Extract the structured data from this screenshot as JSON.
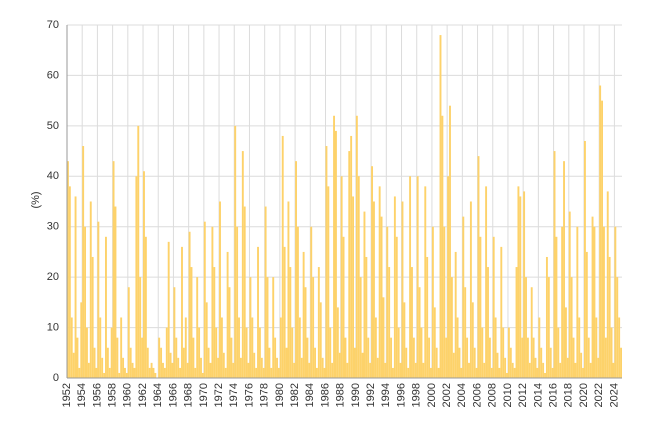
{
  "chart_data": {
    "type": "bar",
    "y_label": "(%)",
    "color": "#fdd26a",
    "grid": true,
    "xlim": [
      1952,
      2025
    ],
    "xticks": [
      1952,
      1954,
      1956,
      1958,
      1960,
      1962,
      1964,
      1966,
      1968,
      1970,
      1972,
      1974,
      1976,
      1978,
      1980,
      1982,
      1984,
      1986,
      1988,
      1990,
      1992,
      1994,
      1996,
      1998,
      2000,
      2002,
      2004,
      2006,
      2008,
      2010,
      2012,
      2014,
      2016,
      2018,
      2020,
      2022,
      2024
    ],
    "ylim": [
      0,
      70
    ],
    "yticks": [
      0,
      10,
      20,
      30,
      40,
      50,
      60,
      70
    ],
    "x": [
      1952,
      1952.25,
      1952.5,
      1952.75,
      1953,
      1953.25,
      1953.5,
      1953.75,
      1954,
      1954.25,
      1954.5,
      1954.75,
      1955,
      1955.25,
      1955.5,
      1955.75,
      1956,
      1956.25,
      1956.5,
      1956.75,
      1957,
      1957.25,
      1957.5,
      1957.75,
      1958,
      1958.25,
      1958.5,
      1958.75,
      1959,
      1959.25,
      1959.5,
      1959.75,
      1960,
      1960.25,
      1960.5,
      1960.75,
      1961,
      1961.25,
      1961.5,
      1961.75,
      1962,
      1962.25,
      1962.5,
      1962.75,
      1963,
      1963.25,
      1963.5,
      1963.75,
      1964,
      1964.25,
      1964.5,
      1964.75,
      1965,
      1965.25,
      1965.5,
      1965.75,
      1966,
      1966.25,
      1966.5,
      1966.75,
      1967,
      1967.25,
      1967.5,
      1967.75,
      1968,
      1968.25,
      1968.5,
      1968.75,
      1969,
      1969.25,
      1969.5,
      1969.75,
      1970,
      1970.25,
      1970.5,
      1970.75,
      1971,
      1971.25,
      1971.5,
      1971.75,
      1972,
      1972.25,
      1972.5,
      1972.75,
      1973,
      1973.25,
      1973.5,
      1973.75,
      1974,
      1974.25,
      1974.5,
      1974.75,
      1975,
      1975.25,
      1975.5,
      1975.75,
      1976,
      1976.25,
      1976.5,
      1976.75,
      1977,
      1977.25,
      1977.5,
      1977.75,
      1978,
      1978.25,
      1978.5,
      1978.75,
      1979,
      1979.25,
      1979.5,
      1979.75,
      1980,
      1980.25,
      1980.5,
      1980.75,
      1981,
      1981.25,
      1981.5,
      1981.75,
      1982,
      1982.25,
      1982.5,
      1982.75,
      1983,
      1983.25,
      1983.5,
      1983.75,
      1984,
      1984.25,
      1984.5,
      1984.75,
      1985,
      1985.25,
      1985.5,
      1985.75,
      1986,
      1986.25,
      1986.5,
      1986.75,
      1987,
      1987.25,
      1987.5,
      1987.75,
      1988,
      1988.25,
      1988.5,
      1988.75,
      1989,
      1989.25,
      1989.5,
      1989.75,
      1990,
      1990.25,
      1990.5,
      1990.75,
      1991,
      1991.25,
      1991.5,
      1991.75,
      1992,
      1992.25,
      1992.5,
      1992.75,
      1993,
      1993.25,
      1993.5,
      1993.75,
      1994,
      1994.25,
      1994.5,
      1994.75,
      1995,
      1995.25,
      1995.5,
      1995.75,
      1996,
      1996.25,
      1996.5,
      1996.75,
      1997,
      1997.25,
      1997.5,
      1997.75,
      1998,
      1998.25,
      1998.5,
      1998.75,
      1999,
      1999.25,
      1999.5,
      1999.75,
      2000,
      2000.25,
      2000.5,
      2000.75,
      2001,
      2001.25,
      2001.5,
      2001.75,
      2002,
      2002.25,
      2002.5,
      2002.75,
      2003,
      2003.25,
      2003.5,
      2003.75,
      2004,
      2004.25,
      2004.5,
      2004.75,
      2005,
      2005.25,
      2005.5,
      2005.75,
      2006,
      2006.25,
      2006.5,
      2006.75,
      2007,
      2007.25,
      2007.5,
      2007.75,
      2008,
      2008.25,
      2008.5,
      2008.75,
      2009,
      2009.25,
      2009.5,
      2009.75,
      2010,
      2010.25,
      2010.5,
      2010.75,
      2011,
      2011.25,
      2011.5,
      2011.75,
      2012,
      2012.25,
      2012.5,
      2012.75,
      2013,
      2013.25,
      2013.5,
      2013.75,
      2014,
      2014.25,
      2014.5,
      2014.75,
      2015,
      2015.25,
      2015.5,
      2015.75,
      2016,
      2016.25,
      2016.5,
      2016.75,
      2017,
      2017.25,
      2017.5,
      2017.75,
      2018,
      2018.25,
      2018.5,
      2018.75,
      2019,
      2019.25,
      2019.5,
      2019.75,
      2020,
      2020.25,
      2020.5,
      2020.75,
      2021,
      2021.25,
      2021.5,
      2021.75,
      2022,
      2022.25,
      2022.5,
      2022.75,
      2023,
      2023.25,
      2023.5,
      2023.75,
      2024,
      2024.25,
      2024.5,
      2024.75
    ],
    "values": [
      43,
      38,
      12,
      5,
      36,
      8,
      2,
      15,
      46,
      30,
      10,
      3,
      35,
      24,
      6,
      2,
      31,
      12,
      4,
      1,
      28,
      6,
      2,
      10,
      43,
      34,
      8,
      1,
      12,
      4,
      2,
      1,
      18,
      6,
      3,
      2,
      40,
      50,
      20,
      8,
      41,
      28,
      6,
      2,
      3,
      2,
      1,
      0,
      8,
      6,
      3,
      2,
      10,
      27,
      5,
      3,
      18,
      8,
      4,
      2,
      26,
      6,
      12,
      3,
      29,
      22,
      8,
      2,
      20,
      10,
      4,
      1,
      31,
      15,
      6,
      3,
      30,
      22,
      10,
      4,
      35,
      12,
      5,
      2,
      25,
      18,
      8,
      3,
      50,
      30,
      12,
      4,
      45,
      34,
      10,
      3,
      20,
      12,
      5,
      2,
      26,
      10,
      4,
      2,
      34,
      20,
      6,
      2,
      20,
      8,
      4,
      2,
      12,
      48,
      26,
      6,
      35,
      22,
      10,
      3,
      43,
      30,
      12,
      4,
      25,
      18,
      8,
      3,
      30,
      20,
      6,
      2,
      22,
      15,
      4,
      2,
      46,
      38,
      10,
      3,
      52,
      49,
      14,
      5,
      40,
      28,
      8,
      3,
      45,
      48,
      36,
      6,
      52,
      40,
      20,
      5,
      33,
      24,
      8,
      3,
      42,
      35,
      12,
      4,
      38,
      32,
      16,
      3,
      30,
      22,
      8,
      2,
      36,
      28,
      10,
      3,
      35,
      15,
      6,
      2,
      40,
      22,
      8,
      3,
      40,
      18,
      10,
      3,
      38,
      24,
      8,
      2,
      30,
      14,
      6,
      2,
      68,
      52,
      30,
      8,
      40,
      54,
      20,
      5,
      25,
      12,
      6,
      2,
      32,
      18,
      8,
      3,
      35,
      15,
      6,
      2,
      44,
      28,
      10,
      3,
      38,
      22,
      8,
      2,
      28,
      12,
      5,
      2,
      26,
      10,
      4,
      1,
      10,
      6,
      3,
      2,
      22,
      38,
      36,
      8,
      37,
      20,
      8,
      3,
      18,
      8,
      4,
      2,
      12,
      6,
      3,
      1,
      24,
      20,
      6,
      2,
      45,
      28,
      10,
      3,
      30,
      43,
      14,
      4,
      33,
      20,
      8,
      3,
      30,
      12,
      5,
      2,
      47,
      25,
      8,
      3,
      32,
      30,
      12,
      4,
      58,
      55,
      30,
      8,
      37,
      24,
      10,
      3,
      30,
      20,
      12,
      6
    ]
  }
}
